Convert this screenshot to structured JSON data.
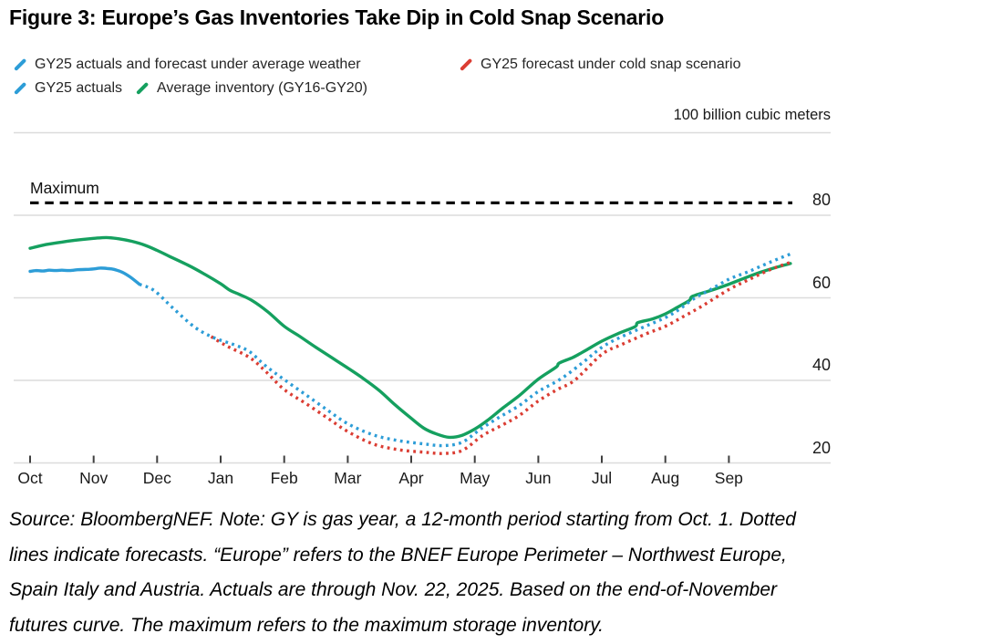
{
  "title": "Figure 3: Europe’s Gas Inventories Take Dip in Cold Snap Scenario",
  "units_label": "100 billion cubic meters",
  "legend": {
    "items": [
      {
        "label": "GY25 actuals and forecast under average weather",
        "color": "#2D9DD7",
        "style": "dotted"
      },
      {
        "label": "GY25 forecast under cold snap scenario",
        "color": "#DB3D33",
        "style": "dotted"
      },
      {
        "label": "GY25 actuals",
        "color": "#2D9DD7",
        "style": "solid"
      },
      {
        "label": "Average inventory (GY16-GY20)",
        "color": "#15A05F",
        "style": "solid"
      }
    ]
  },
  "chart_data": {
    "type": "line",
    "title": "Figure 3: Europe’s Gas Inventories Take Dip in Cold Snap Scenario",
    "ylabel": "100 billion cubic meters",
    "xlabel": "",
    "x_unit": "months_from_oct_1",
    "ylim": [
      17,
      100
    ],
    "grid": "horizontal",
    "legend_position": "top-left",
    "x_axis": {
      "tick_labels": [
        "Oct",
        "Nov",
        "Dec",
        "Jan",
        "Feb",
        "Mar",
        "Apr",
        "May",
        "Jun",
        "Jul",
        "Aug",
        "Sep"
      ]
    },
    "y_axis": {
      "ticks": [
        20,
        40,
        60,
        80
      ],
      "top_gridline": 100,
      "labels_side": "right"
    },
    "max_line": {
      "label": "Maximum",
      "value": 83,
      "style": "dashed-black"
    },
    "series": [
      {
        "name": "Average inventory (GY16-GY20)",
        "id": "avg-inventory",
        "color": "#15A05F",
        "line_style": "solid",
        "points": [
          [
            0,
            72
          ],
          [
            0.25,
            72.9
          ],
          [
            0.5,
            73.5
          ],
          [
            0.75,
            74
          ],
          [
            1,
            74.4
          ],
          [
            1.2,
            74.6
          ],
          [
            1.4,
            74.3
          ],
          [
            1.6,
            73.7
          ],
          [
            1.8,
            72.8
          ],
          [
            2,
            71.5
          ],
          [
            2.2,
            70
          ],
          [
            2.5,
            67.8
          ],
          [
            2.75,
            65.7
          ],
          [
            3,
            63.4
          ],
          [
            3.15,
            61.8
          ],
          [
            3.3,
            60.8
          ],
          [
            3.5,
            59.3
          ],
          [
            3.75,
            56.5
          ],
          [
            4,
            53.1
          ],
          [
            4.25,
            50.6
          ],
          [
            4.5,
            48
          ],
          [
            4.75,
            45.5
          ],
          [
            5,
            43
          ],
          [
            5.25,
            40.4
          ],
          [
            5.5,
            37.5
          ],
          [
            5.75,
            34
          ],
          [
            6,
            30.8
          ],
          [
            6.2,
            28.4
          ],
          [
            6.4,
            27
          ],
          [
            6.6,
            26.2
          ],
          [
            6.8,
            26.7
          ],
          [
            7,
            28.2
          ],
          [
            7.2,
            30.3
          ],
          [
            7.45,
            33.4
          ],
          [
            7.7,
            36.3
          ],
          [
            8,
            40.3
          ],
          [
            8.28,
            43.2
          ],
          [
            8.33,
            44.2
          ],
          [
            8.55,
            45.6
          ],
          [
            8.75,
            47.3
          ],
          [
            9,
            49.5
          ],
          [
            9.25,
            51.3
          ],
          [
            9.52,
            53
          ],
          [
            9.57,
            54
          ],
          [
            9.8,
            54.9
          ],
          [
            10,
            56.1
          ],
          [
            10.2,
            57.8
          ],
          [
            10.38,
            59.4
          ],
          [
            10.43,
            60.4
          ],
          [
            10.7,
            61.7
          ],
          [
            11,
            63.3
          ],
          [
            11.25,
            64.8
          ],
          [
            11.5,
            66.2
          ],
          [
            11.75,
            67.4
          ],
          [
            11.97,
            68.3
          ]
        ]
      },
      {
        "name": "GY25 forecast under cold snap scenario",
        "id": "cold-snap-forecast",
        "color": "#DB3D33",
        "line_style": "dotted",
        "points": [
          [
            2.85,
            50.6
          ],
          [
            3.1,
            48.3
          ],
          [
            3.45,
            45.6
          ],
          [
            3.7,
            42.3
          ],
          [
            4,
            37.8
          ],
          [
            4.35,
            34.3
          ],
          [
            4.7,
            30.7
          ],
          [
            5,
            27.6
          ],
          [
            5.4,
            24.6
          ],
          [
            5.8,
            23.2
          ],
          [
            6.2,
            22.6
          ],
          [
            6.5,
            22.3
          ],
          [
            6.8,
            23
          ],
          [
            7.13,
            26.7
          ],
          [
            7.45,
            29.3
          ],
          [
            7.7,
            31.5
          ],
          [
            8,
            35
          ],
          [
            8.3,
            37.8
          ],
          [
            8.57,
            40
          ],
          [
            9,
            46.3
          ],
          [
            9.3,
            48.6
          ],
          [
            9.7,
            51.3
          ],
          [
            10,
            53.1
          ],
          [
            10.3,
            55.6
          ],
          [
            10.6,
            58.2
          ],
          [
            11,
            62
          ],
          [
            11.3,
            64.3
          ],
          [
            11.6,
            66.5
          ],
          [
            11.8,
            67.7
          ],
          [
            11.97,
            68.6
          ]
        ]
      },
      {
        "name": "GY25 actuals and forecast under average weather",
        "id": "avg-weather-forecast",
        "color": "#2D9DD7",
        "line_style": "dotted",
        "points": [
          [
            1.72,
            63.3
          ],
          [
            1.95,
            61.8
          ],
          [
            2.25,
            57.5
          ],
          [
            2.6,
            52.8
          ],
          [
            2.9,
            50.3
          ],
          [
            3.2,
            48.7
          ],
          [
            3.45,
            47
          ],
          [
            3.7,
            43.6
          ],
          [
            4,
            40.2
          ],
          [
            4.35,
            36.4
          ],
          [
            4.7,
            32.6
          ],
          [
            5,
            29.5
          ],
          [
            5.4,
            26.8
          ],
          [
            5.8,
            25.4
          ],
          [
            6.2,
            24.6
          ],
          [
            6.5,
            24.2
          ],
          [
            6.8,
            25
          ],
          [
            7.1,
            28.3
          ],
          [
            7.4,
            31.2
          ],
          [
            7.7,
            33.9
          ],
          [
            8,
            37.3
          ],
          [
            8.35,
            40.3
          ],
          [
            8.7,
            44.3
          ],
          [
            9,
            48
          ],
          [
            9.3,
            50.5
          ],
          [
            9.7,
            53.2
          ],
          [
            10,
            55.2
          ],
          [
            10.2,
            57
          ],
          [
            10.45,
            59.8
          ],
          [
            10.7,
            61.9
          ],
          [
            11,
            64.5
          ],
          [
            11.3,
            66.3
          ],
          [
            11.6,
            68.3
          ],
          [
            11.8,
            69.6
          ],
          [
            11.97,
            70.6
          ]
        ]
      },
      {
        "name": "GY25 actuals",
        "id": "gy25-actuals",
        "color": "#2D9DD7",
        "line_style": "solid",
        "points": [
          [
            0,
            66.4
          ],
          [
            0.1,
            66.6
          ],
          [
            0.2,
            66.5
          ],
          [
            0.3,
            66.7
          ],
          [
            0.4,
            66.6
          ],
          [
            0.5,
            66.7
          ],
          [
            0.62,
            66.6
          ],
          [
            0.75,
            66.8
          ],
          [
            0.9,
            66.9
          ],
          [
            1,
            67
          ],
          [
            1.1,
            67.2
          ],
          [
            1.22,
            67.1
          ],
          [
            1.32,
            66.9
          ],
          [
            1.45,
            66.2
          ],
          [
            1.58,
            65
          ],
          [
            1.72,
            63.3
          ]
        ]
      }
    ]
  },
  "footer": {
    "lines": [
      "Source: BloombergNEF. Note: GY is gas year, a 12-month period starting from Oct. 1. Dotted",
      "lines indicate forecasts. “Europe” refers to the BNEF Europe Perimeter – Northwest Europe,",
      "Spain Italy and Austria. Actuals are through Nov. 22, 2025. Based on the end-of-November",
      "futures curve. The maximum refers to the maximum storage inventory."
    ]
  }
}
